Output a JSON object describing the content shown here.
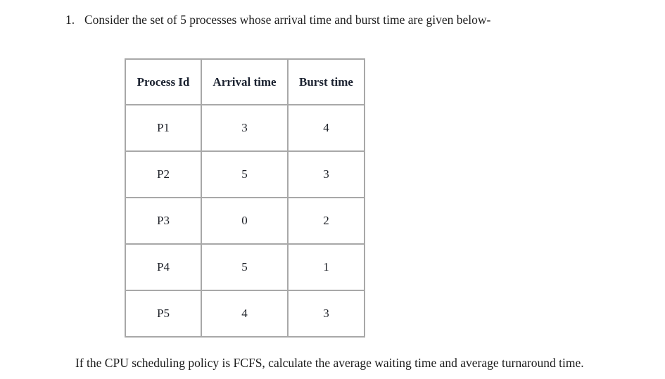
{
  "document": {
    "question_number": "1.",
    "question_text": "Consider the set of 5 processes whose arrival time and burst time are given below-",
    "footer_text": "If the CPU scheduling policy is FCFS, calculate the average waiting time and average turnaround time."
  },
  "table": {
    "headers": [
      "Process Id",
      "Arrival time",
      "Burst time"
    ],
    "rows": [
      {
        "process_id": "P1",
        "arrival_time": "3",
        "burst_time": "4"
      },
      {
        "process_id": "P2",
        "arrival_time": "5",
        "burst_time": "3"
      },
      {
        "process_id": "P3",
        "arrival_time": "0",
        "burst_time": "2"
      },
      {
        "process_id": "P4",
        "arrival_time": "5",
        "burst_time": "1"
      },
      {
        "process_id": "P5",
        "arrival_time": "4",
        "burst_time": "3"
      }
    ]
  },
  "colors": {
    "border": "#a8a8a8",
    "text": "#1c1c1c",
    "background": "#ffffff"
  }
}
